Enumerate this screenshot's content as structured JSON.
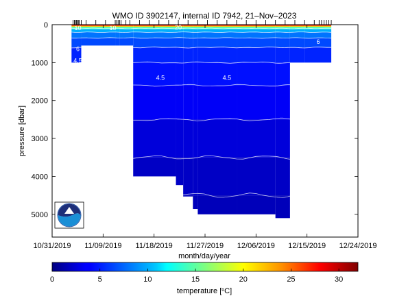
{
  "chart_data": {
    "type": "heatmap",
    "title": "WMO ID 3902147, internal ID 7942, 21–Nov–2023",
    "xlabel": "month/day/year",
    "ylabel": "pressure [dbar]",
    "x_tick_labels": [
      "10/31/2019",
      "11/09/2019",
      "11/18/2019",
      "11/27/2019",
      "12/06/2019",
      "12/15/2019",
      "12/24/2019"
    ],
    "x_range_days": [
      0,
      63
    ],
    "y_ticks": [
      0,
      1000,
      2000,
      3000,
      4000,
      5000
    ],
    "y_range": [
      0,
      5600
    ],
    "y_inverted": true,
    "colorbar": {
      "label": "temperature [",
      "label_unit": "C]",
      "degree_symbol": "o",
      "range": [
        0,
        32
      ],
      "ticks": [
        "0",
        "5",
        "10",
        "15",
        "20",
        "25",
        "30"
      ]
    },
    "profile_days": [
      4.3,
      4.6,
      4.8,
      5.0,
      5.2,
      5.4,
      5.6,
      6.0,
      7.0,
      9.0,
      11.0,
      13.0,
      13.3,
      13.6,
      13.9,
      14.2,
      15.2,
      16.0,
      18.0,
      20.0,
      22.0,
      24.0,
      26.0,
      28.0,
      30.0,
      32.0,
      34.0,
      36.0,
      38.0,
      40.0,
      42.0,
      44.0,
      46.0,
      48.0,
      50.0,
      52.0,
      54.0,
      55.0,
      55.5,
      56.0,
      56.5,
      57.0,
      57.5
    ],
    "data_extent": [
      {
        "from_day": 6.0,
        "to_day": 13.0,
        "max_pressure": 550
      },
      {
        "from_day": 4.0,
        "to_day": 6.0,
        "max_pressure": 1000
      },
      {
        "from_day": 13.0,
        "to_day": 13.9,
        "max_pressure": 550
      },
      {
        "from_day": 13.9,
        "to_day": 16.7,
        "max_pressure": 550
      },
      {
        "from_day": 16.7,
        "to_day": 25.5,
        "max_pressure": 4000
      },
      {
        "from_day": 25.5,
        "to_day": 27.0,
        "max_pressure": 4230
      },
      {
        "from_day": 27.0,
        "to_day": 29.0,
        "max_pressure": 4530
      },
      {
        "from_day": 29.0,
        "to_day": 30.0,
        "max_pressure": 4860
      },
      {
        "from_day": 30.0,
        "to_day": 38.0,
        "max_pressure": 5000
      },
      {
        "from_day": 38.0,
        "to_day": 46.0,
        "max_pressure": 5000
      },
      {
        "from_day": 46.0,
        "to_day": 49.0,
        "max_pressure": 5100
      },
      {
        "from_day": 49.0,
        "to_day": 52.0,
        "max_pressure": 1000
      },
      {
        "from_day": 52.0,
        "to_day": 57.5,
        "max_pressure": 1000
      }
    ],
    "temperature_layers": [
      {
        "top": 0,
        "bottom": 30,
        "temp": 29
      },
      {
        "top": 30,
        "bottom": 60,
        "temp": 22
      },
      {
        "top": 60,
        "bottom": 120,
        "temp": 14
      },
      {
        "top": 120,
        "bottom": 200,
        "temp": 10
      },
      {
        "top": 200,
        "bottom": 350,
        "temp": 8
      },
      {
        "top": 350,
        "bottom": 600,
        "temp": 6.5
      },
      {
        "top": 600,
        "bottom": 1000,
        "temp": 5.2
      },
      {
        "top": 1000,
        "bottom": 1600,
        "temp": 4.5
      },
      {
        "top": 1600,
        "bottom": 2500,
        "temp": 3.3
      },
      {
        "top": 2500,
        "bottom": 3500,
        "temp": 2.5
      },
      {
        "top": 3500,
        "bottom": 4500,
        "temp": 1.9
      },
      {
        "top": 4500,
        "bottom": 5200,
        "temp": 1.6
      }
    ],
    "contour_labels": [
      {
        "day": 22.3,
        "pressure": 1400,
        "text": "4.5"
      },
      {
        "day": 36.0,
        "pressure": 1400,
        "text": "4.5"
      },
      {
        "day": 5.3,
        "pressure": 950,
        "text": "4.5"
      },
      {
        "day": 5.3,
        "pressure": 640,
        "text": "6"
      },
      {
        "day": 54.8,
        "pressure": 450,
        "text": "6"
      },
      {
        "day": 5.3,
        "pressure": 90,
        "text": "10"
      },
      {
        "day": 12.5,
        "pressure": 90,
        "text": "10"
      },
      {
        "day": 26.0,
        "pressure": 70,
        "text": "20"
      }
    ]
  }
}
